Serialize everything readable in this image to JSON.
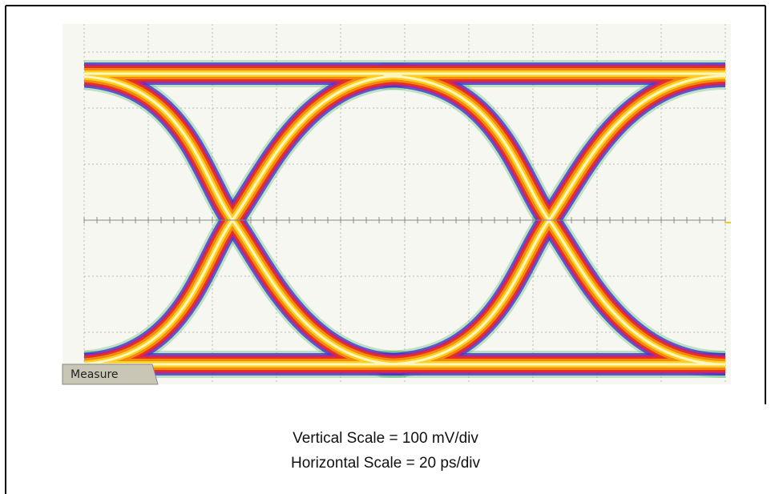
{
  "scope": {
    "tab_label": "Measure"
  },
  "caption": {
    "vertical_scale": "Vertical Scale  =  100 mV/div",
    "horizontal_scale": "Horizontal Scale = 20 ps/div"
  }
}
